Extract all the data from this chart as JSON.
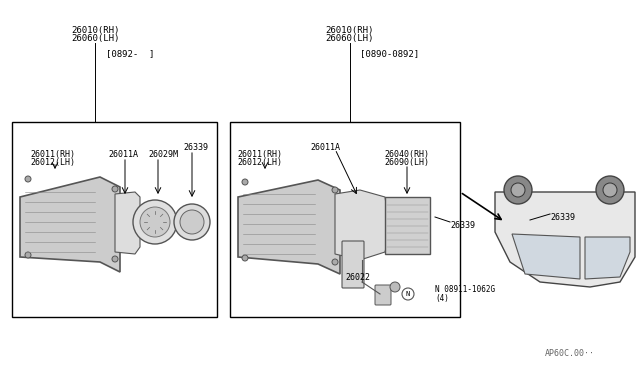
{
  "bg_color": "#ffffff",
  "line_color": "#000000",
  "light_gray": "#aaaaaa",
  "mid_gray": "#888888",
  "dark_gray": "#444444",
  "diagram_bg": "#f5f5f5",
  "title": "",
  "watermark": "AP60C.00··",
  "box1_label_top1": "26010(RH)",
  "box1_label_top2": "26060(LH)",
  "box1_date": "[0892-  ]",
  "box2_label_top1": "26010(RH)",
  "box2_label_top2": "26060(LH)",
  "box2_date": "[0890-0892]",
  "parts": {
    "26339_left": "26339",
    "26029M": "26029M",
    "26011A_left": "26011A",
    "26011RH_left": "26011(RH)",
    "26012LH_left": "26012(LH)",
    "26022": "26022",
    "26011RH_right": "26011(RH)",
    "26012LH_right": "26012(LH)",
    "26011A_right": "26011A",
    "N_label": "N 08911-1062G",
    "N_sub": "(4)",
    "26339_right": "26339",
    "26040RH": "26040(RH)",
    "26090LH": "26090(LH)"
  }
}
